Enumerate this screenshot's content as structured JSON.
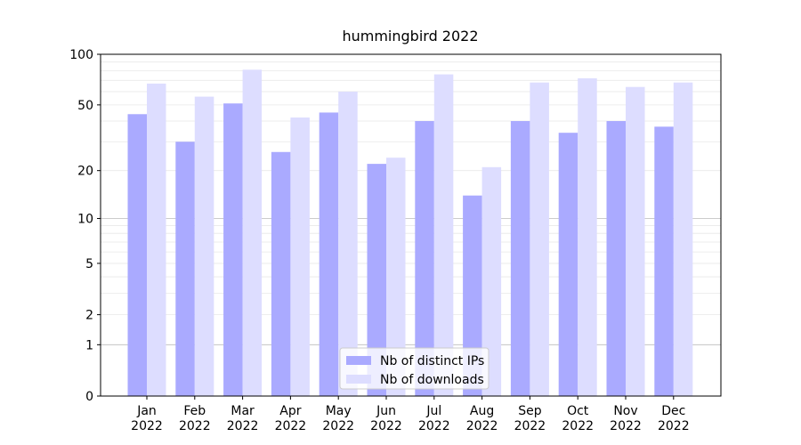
{
  "chart_data": {
    "type": "bar",
    "title": "hummingbird 2022",
    "categories": [
      "Jan 2022",
      "Feb 2022",
      "Mar 2022",
      "Apr 2022",
      "May 2022",
      "Jun 2022",
      "Jul 2022",
      "Aug 2022",
      "Sep 2022",
      "Oct 2022",
      "Nov 2022",
      "Dec 2022"
    ],
    "series": [
      {
        "name": "Nb of distinct IPs",
        "color": "#aaaaff",
        "values": [
          44,
          30,
          51,
          26,
          45,
          22,
          40,
          14,
          40,
          34,
          40,
          37
        ]
      },
      {
        "name": "Nb of downloads",
        "color": "#ddddff",
        "values": [
          67,
          56,
          81,
          42,
          60,
          24,
          76,
          21,
          68,
          72,
          64,
          68
        ]
      }
    ],
    "yscale": "log1p",
    "ylim": [
      0,
      100
    ],
    "yticks": [
      0,
      1,
      2,
      5,
      10,
      20,
      50,
      100
    ],
    "major_grid": [
      1,
      10,
      100
    ],
    "minor_grid": [
      2,
      3,
      4,
      5,
      6,
      7,
      8,
      9,
      20,
      30,
      40,
      50,
      60,
      70,
      80,
      90
    ],
    "legend": "lower center"
  }
}
